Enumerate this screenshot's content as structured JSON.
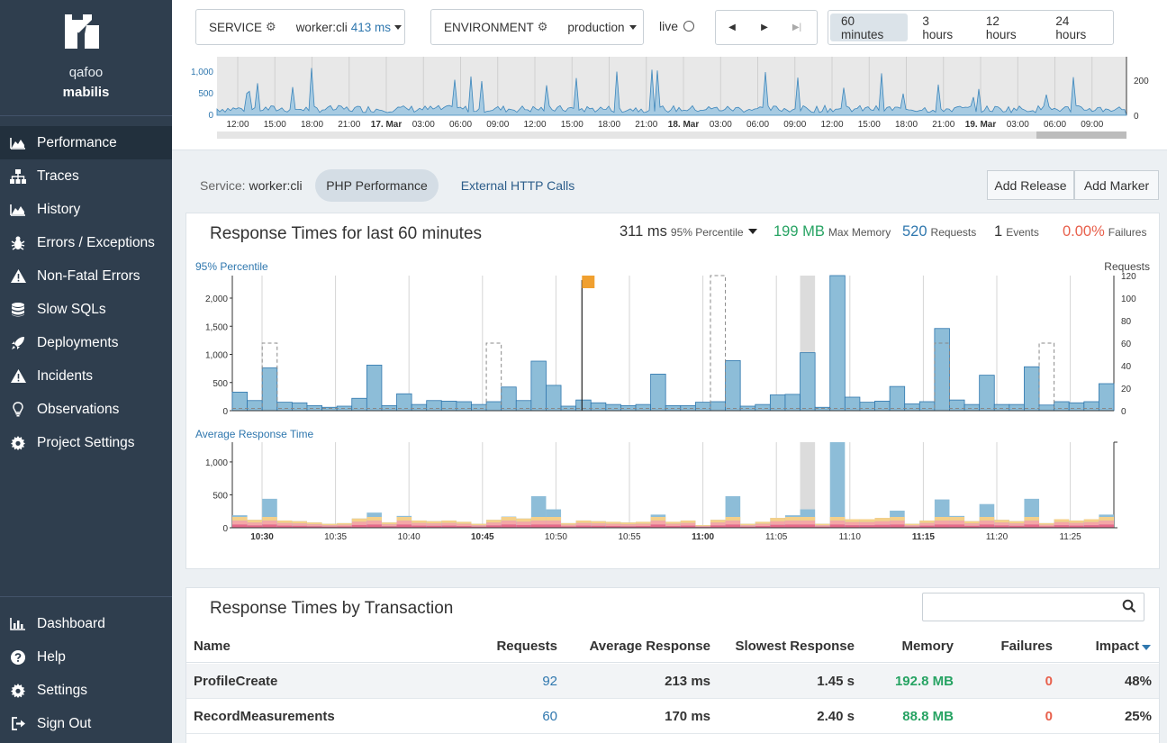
{
  "sidebar": {
    "org": "qafoo",
    "project": "mabilis",
    "nav_main": [
      {
        "label": "Performance",
        "icon": "area-chart-icon",
        "active": true
      },
      {
        "label": "Traces",
        "icon": "sitemap-icon"
      },
      {
        "label": "History",
        "icon": "area-chart-icon"
      },
      {
        "label": "Errors / Exceptions",
        "icon": "bug-icon"
      },
      {
        "label": "Non-Fatal Errors",
        "icon": "warning-icon"
      },
      {
        "label": "Slow SQLs",
        "icon": "database-icon"
      },
      {
        "label": "Deployments",
        "icon": "rocket-icon"
      },
      {
        "label": "Incidents",
        "icon": "warning-icon"
      },
      {
        "label": "Observations",
        "icon": "lightbulb-icon"
      },
      {
        "label": "Project Settings",
        "icon": "gear-icon"
      }
    ],
    "nav_bottom": [
      {
        "label": "Dashboard",
        "icon": "bar-chart-icon"
      },
      {
        "label": "Help",
        "icon": "question-icon"
      },
      {
        "label": "Settings",
        "icon": "gear-icon"
      },
      {
        "label": "Sign Out",
        "icon": "sign-out-icon"
      }
    ]
  },
  "filters": {
    "service_label": "SERVICE",
    "service_value": "worker:cli",
    "service_ms": "413 ms",
    "environment_label": "ENVIRONMENT",
    "environment_value": "production",
    "live_label": "live"
  },
  "timerange": {
    "options": [
      "60 minutes",
      "3 hours",
      "12 hours",
      "24 hours"
    ],
    "active": "60 minutes"
  },
  "overview_chart": {
    "y_left_ticks": [
      "1,000",
      "500",
      "0"
    ],
    "y_right_ticks": [
      "200",
      "0"
    ],
    "x_labels": [
      "12:00",
      "15:00",
      "18:00",
      "21:00",
      "17. Mar",
      "03:00",
      "06:00",
      "09:00",
      "12:00",
      "15:00",
      "18:00",
      "21:00",
      "18. Mar",
      "03:00",
      "06:00",
      "09:00",
      "12:00",
      "15:00",
      "18:00",
      "21:00",
      "19. Mar",
      "03:00",
      "06:00",
      "09:00"
    ]
  },
  "subnav": {
    "service_prefix": "Service:",
    "service_name": "worker:cli",
    "tabs": [
      "PHP Performance",
      "External HTTP Calls"
    ],
    "add_release": "Add Release",
    "add_marker": "Add Marker"
  },
  "perf_panel": {
    "title": "Response Times for last 60 minutes",
    "stats": [
      {
        "value": "311 ms",
        "label": "95% Percentile",
        "color": "#333333"
      },
      {
        "value": "199 MB",
        "label": "Max Memory",
        "color": "#27a363"
      },
      {
        "value": "520",
        "label": "Requests",
        "color": "#2f77ae"
      },
      {
        "value": "1",
        "label": "Events",
        "color": "#333333"
      },
      {
        "value": "0.00%",
        "label": "Failures",
        "color": "#e8604c"
      }
    ],
    "chart1_title": "95% Percentile",
    "chart1_right_title": "Requests",
    "chart2_title": "Average Response Time"
  },
  "chart_data": [
    {
      "type": "bar",
      "title": "95% Percentile",
      "ylabel_right": "Requests",
      "ylim": [
        0,
        2400
      ],
      "ylim_right": [
        0,
        120
      ],
      "y_ticks": [
        "2,000",
        "1,500",
        "1,000",
        "500",
        "0"
      ],
      "y_right_ticks": [
        "120",
        "100",
        "80",
        "60",
        "40",
        "20",
        "0"
      ],
      "x_labels": [
        "10:30",
        "10:35",
        "10:40",
        "10:45",
        "10:50",
        "10:55",
        "11:00",
        "11:05",
        "11:10",
        "11:15",
        "11:20",
        "11:25"
      ],
      "values": [
        330,
        180,
        760,
        150,
        140,
        90,
        60,
        80,
        220,
        810,
        90,
        300,
        110,
        180,
        170,
        160,
        110,
        160,
        420,
        180,
        880,
        450,
        80,
        190,
        140,
        110,
        90,
        110,
        650,
        90,
        90,
        150,
        160,
        890,
        80,
        110,
        280,
        290,
        1030,
        60,
        2400,
        240,
        150,
        170,
        430,
        120,
        160,
        1460,
        190,
        110,
        630,
        110,
        110,
        780,
        100,
        160,
        140,
        160,
        480
      ],
      "requests_peaks": [
        [
          2,
          60
        ],
        [
          17,
          60
        ],
        [
          32,
          120
        ],
        [
          47,
          60
        ],
        [
          54,
          60
        ]
      ]
    },
    {
      "type": "bar",
      "title": "Average Response Time",
      "ylim": [
        0,
        1300
      ],
      "y_ticks": [
        "1,000",
        "500",
        "0"
      ],
      "x_labels": [
        "10:30",
        "10:35",
        "10:40",
        "10:45",
        "10:50",
        "10:55",
        "11:00",
        "11:05",
        "11:10",
        "11:15",
        "11:20",
        "11:25"
      ],
      "values": [
        190,
        120,
        440,
        110,
        100,
        80,
        60,
        70,
        140,
        230,
        80,
        180,
        110,
        100,
        110,
        90,
        60,
        120,
        170,
        140,
        480,
        280,
        70,
        110,
        100,
        90,
        80,
        90,
        200,
        90,
        110,
        40,
        120,
        480,
        60,
        90,
        150,
        190,
        280,
        60,
        1300,
        130,
        130,
        150,
        260,
        60,
        110,
        430,
        180,
        100,
        360,
        120,
        100,
        440,
        70,
        130,
        110,
        130,
        200
      ]
    }
  ],
  "transactions": {
    "title": "Response Times by Transaction",
    "search_placeholder": "",
    "columns": [
      "Name",
      "Requests",
      "Average Response",
      "Slowest Response",
      "Memory",
      "Failures",
      "Impact"
    ],
    "rows": [
      {
        "name": "ProfileCreate",
        "requests": "92",
        "avg": "213 ms",
        "slowest": "1.45 s",
        "memory": "192.8 MB",
        "failures": "0",
        "impact": "48%"
      },
      {
        "name": "RecordMeasurements",
        "requests": "60",
        "avg": "170 ms",
        "slowest": "2.40 s",
        "memory": "88.8 MB",
        "failures": "0",
        "impact": "25%"
      }
    ]
  },
  "colors": {
    "sidebar_bg": "#2f3e4e",
    "bar_blue": "#8dbdd8",
    "bar_edge": "#2f77ae",
    "accent_blue": "#2f77ae",
    "green": "#27a363",
    "red": "#e8604c"
  }
}
